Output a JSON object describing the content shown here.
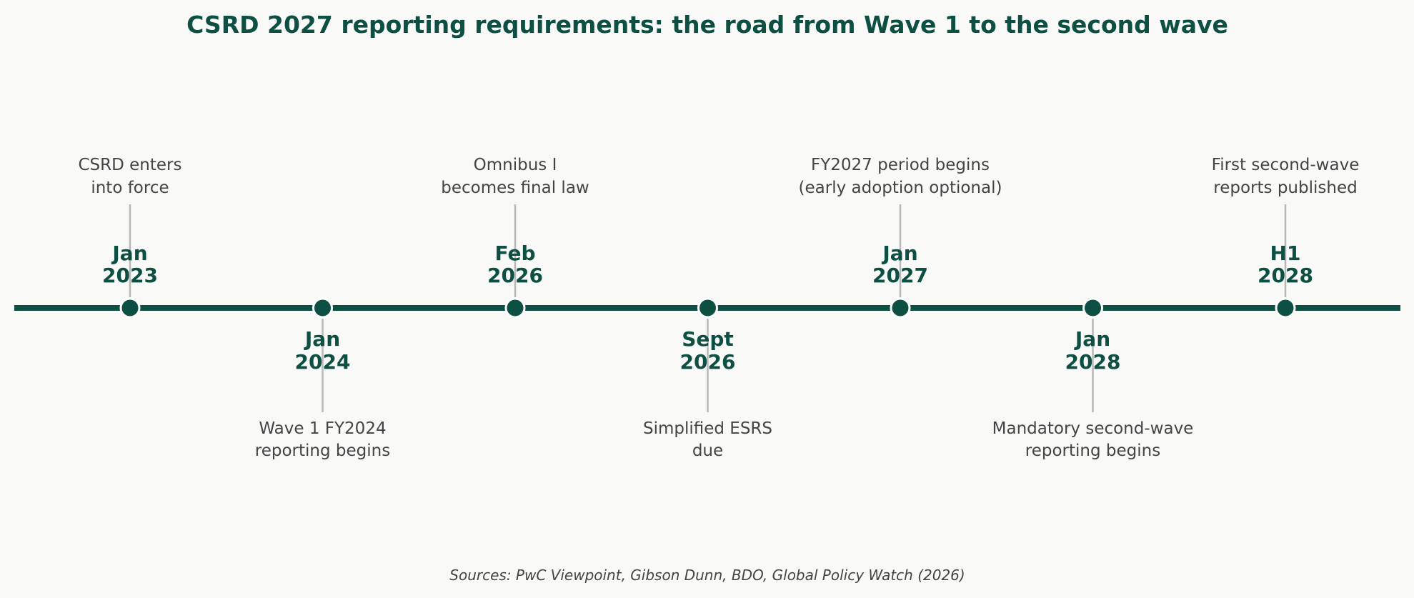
{
  "title": "CSRD 2027 reporting requirements: the road from Wave 1 to the second wave",
  "source": "Sources: PwC Viewpoint, Gibson Dunn, BDO, Global Policy Watch (2026)",
  "colors": {
    "primary": "#0d4f42",
    "text": "#444444",
    "connector": "#b8b8b8",
    "background": "#f9f9f8"
  },
  "milestones": [
    {
      "date_line1": "Jan",
      "date_line2": "2023",
      "desc_line1": "CSRD enters",
      "desc_line2": "into force",
      "side": "above"
    },
    {
      "date_line1": "Jan",
      "date_line2": "2024",
      "desc_line1": "Wave 1 FY2024",
      "desc_line2": "reporting begins",
      "side": "below"
    },
    {
      "date_line1": "Feb",
      "date_line2": "2026",
      "desc_line1": "Omnibus I",
      "desc_line2": "becomes final law",
      "side": "above"
    },
    {
      "date_line1": "Sept",
      "date_line2": "2026",
      "desc_line1": "Simplified ESRS",
      "desc_line2": "due",
      "side": "below"
    },
    {
      "date_line1": "Jan",
      "date_line2": "2027",
      "desc_line1": "FY2027 period begins",
      "desc_line2": "(early adoption optional)",
      "side": "above"
    },
    {
      "date_line1": "Jan",
      "date_line2": "2028",
      "desc_line1": "Mandatory second-wave",
      "desc_line2": "reporting begins",
      "side": "below"
    },
    {
      "date_line1": "H1",
      "date_line2": "2028",
      "desc_line1": "First second-wave",
      "desc_line2": "reports published",
      "side": "above"
    }
  ]
}
